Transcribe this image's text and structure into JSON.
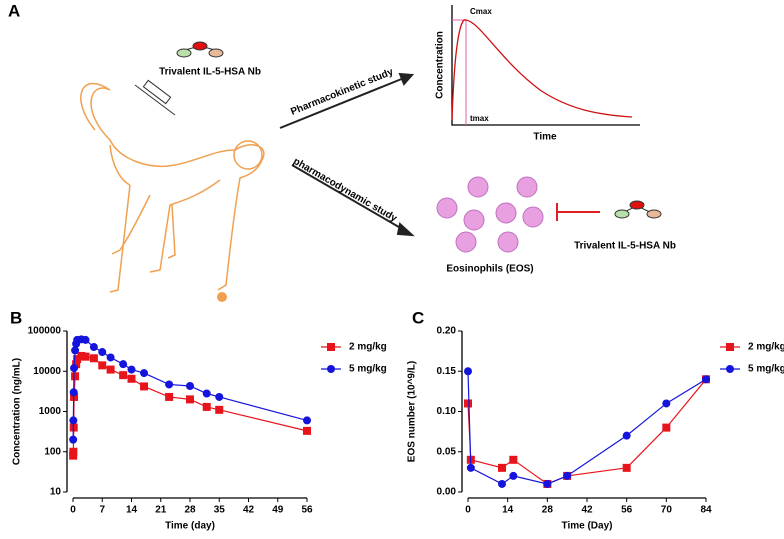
{
  "diagram": {
    "panel": "A",
    "nb_top": "Trivalent IL-5-HSA Nb",
    "pk_arrow": "Pharmacokinetic study",
    "pd_arrow": "pharmacodynamic study",
    "cmax": "Cmax",
    "tmax": "tmax",
    "pk_ylabel": "Concentration",
    "pk_xlabel": "Time",
    "eos": "Eosinophils (EOS)",
    "nb_bottom": "Trivalent IL-5-HSA Nb"
  },
  "chart_data": [
    {
      "type": "line",
      "panel": "B",
      "x_label": "Time (day)",
      "y_label": "Concentration (ng/mL)",
      "ylog": true,
      "xlim": [
        0,
        56
      ],
      "xticks": [
        0,
        7,
        14,
        21,
        28,
        35,
        42,
        49,
        56
      ],
      "ylim": [
        10,
        100000
      ],
      "yticks": [
        10,
        100,
        1000,
        10000,
        100000
      ],
      "legend": "right",
      "series": [
        {
          "name": "2 mg/kg",
          "color": "#e8141c",
          "marker": "square",
          "x": [
            0.04,
            0.08,
            0.17,
            0.25,
            0.5,
            0.75,
            1,
            2,
            3,
            5,
            7,
            9,
            12,
            14,
            17,
            23,
            28,
            32,
            35,
            56
          ],
          "values": [
            80,
            100,
            400,
            2300,
            7500,
            15000,
            20000,
            24000,
            23000,
            21000,
            14000,
            11000,
            8000,
            6500,
            4200,
            2300,
            2000,
            1300,
            1100,
            330
          ]
        },
        {
          "name": "5 mg/kg",
          "color": "#1414dc",
          "marker": "circle",
          "x": [
            0.04,
            0.08,
            0.17,
            0.25,
            0.5,
            0.75,
            1,
            2,
            3,
            5,
            7,
            9,
            12,
            14,
            17,
            23,
            28,
            32,
            35,
            56
          ],
          "values": [
            200,
            600,
            3000,
            12000,
            33000,
            48000,
            60000,
            62000,
            60000,
            40000,
            30000,
            22000,
            15000,
            11000,
            9000,
            4700,
            4300,
            2800,
            2300,
            600
          ]
        }
      ]
    },
    {
      "type": "line",
      "panel": "C",
      "x_label": "Time (Day)",
      "y_label": "EOS number (10^9/L)",
      "xlim": [
        0,
        84
      ],
      "xticks": [
        0,
        14,
        28,
        42,
        56,
        70,
        84
      ],
      "ylim": [
        0,
        0.2
      ],
      "yticks": [
        {
          "value": 0,
          "label": "0.00"
        },
        0.05,
        {
          "value": 0.1,
          "label": "0.10"
        },
        0.15,
        {
          "value": 0.2,
          "label": "0.20"
        }
      ],
      "legend": "right",
      "series": [
        {
          "name": "2 mg/kg",
          "color": "#e8141c",
          "marker": "square",
          "x": [
            0,
            1,
            12,
            16,
            28,
            35,
            56,
            70,
            84
          ],
          "values": [
            0.11,
            0.04,
            0.03,
            0.04,
            0.01,
            0.02,
            0.03,
            0.08,
            0.14
          ]
        },
        {
          "name": "5 mg/kg",
          "color": "#1414dc",
          "marker": "circle",
          "x": [
            0,
            1,
            12,
            16,
            28,
            35,
            56,
            70,
            84
          ],
          "values": [
            0.15,
            0.03,
            0.01,
            0.02,
            0.01,
            0.02,
            0.07,
            0.11,
            0.14
          ]
        }
      ]
    }
  ]
}
